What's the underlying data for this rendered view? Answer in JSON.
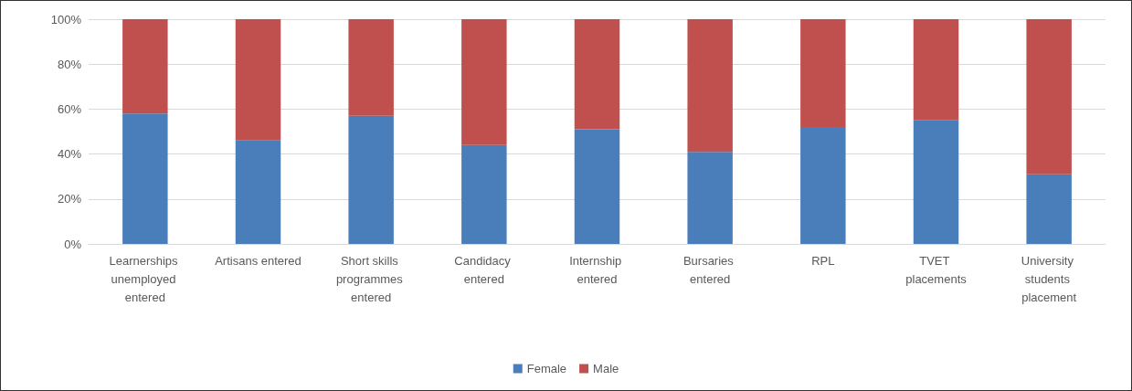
{
  "chart_data": {
    "type": "bar",
    "stacked": true,
    "categories": [
      "Learnerships unemployed entered",
      "Artisans entered",
      "Short skills programmes entered",
      "Candidacy entered",
      "Internship entered",
      "Bursaries entered",
      "RPL",
      "TVET placements",
      "University students placement"
    ],
    "series": [
      {
        "name": "Female",
        "color": "#4a7ebb",
        "values": [
          58,
          46,
          57,
          44,
          51,
          41,
          52,
          55,
          31
        ]
      },
      {
        "name": "Male",
        "color": "#c0504d",
        "values": [
          42,
          54,
          43,
          56,
          49,
          59,
          48,
          45,
          69
        ]
      }
    ],
    "ylim": [
      0,
      100
    ],
    "yticks": [
      {
        "value": 0,
        "label": "0%"
      },
      {
        "value": 20,
        "label": "20%"
      },
      {
        "value": 40,
        "label": "40%"
      },
      {
        "value": 60,
        "label": "60%"
      },
      {
        "value": 80,
        "label": "80%"
      },
      {
        "value": 100,
        "label": "100%"
      }
    ],
    "grid": "y",
    "legend": "bottom"
  }
}
